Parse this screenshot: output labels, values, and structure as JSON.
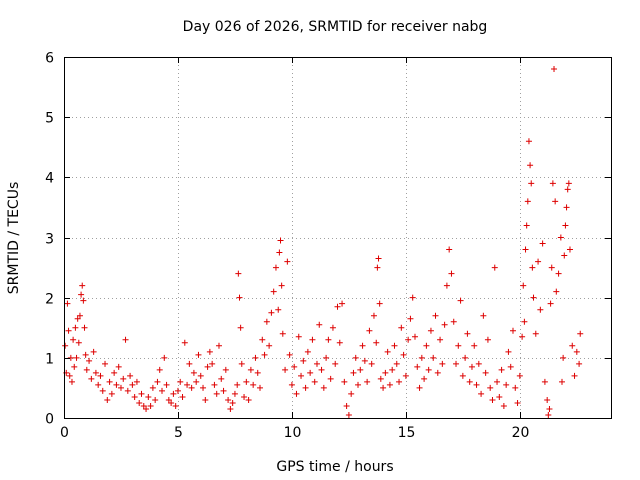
{
  "chart_data": {
    "type": "scatter",
    "title": "Day 026 of 2026, SRMTID for receiver nabg",
    "xlabel": "GPS time / hours",
    "ylabel": "SRMTID / TECUs",
    "xlim": [
      0,
      24
    ],
    "ylim": [
      0,
      6
    ],
    "xticks": [
      0,
      5,
      10,
      15,
      20
    ],
    "yticks": [
      0,
      1,
      2,
      3,
      4,
      5,
      6
    ],
    "grid": true,
    "marker": "+",
    "point_color": "#dd0000",
    "series": [
      {
        "name": "SRMTID",
        "points": [
          [
            0.05,
            1.2
          ],
          [
            0.1,
            0.75
          ],
          [
            0.15,
            1.9
          ],
          [
            0.2,
            1.45
          ],
          [
            0.25,
            0.7
          ],
          [
            0.3,
            1.0
          ],
          [
            0.35,
            0.6
          ],
          [
            0.4,
            1.3
          ],
          [
            0.45,
            0.85
          ],
          [
            0.5,
            1.5
          ],
          [
            0.55,
            1.0
          ],
          [
            0.6,
            1.65
          ],
          [
            0.65,
            1.25
          ],
          [
            0.7,
            1.7
          ],
          [
            0.75,
            2.05
          ],
          [
            0.8,
            2.2
          ],
          [
            0.85,
            1.95
          ],
          [
            0.9,
            1.5
          ],
          [
            0.95,
            1.05
          ],
          [
            1.0,
            0.8
          ],
          [
            1.1,
            0.95
          ],
          [
            1.2,
            0.65
          ],
          [
            1.3,
            1.1
          ],
          [
            1.4,
            0.75
          ],
          [
            1.5,
            0.55
          ],
          [
            1.6,
            0.7
          ],
          [
            1.7,
            0.45
          ],
          [
            1.8,
            0.9
          ],
          [
            1.9,
            0.3
          ],
          [
            2.0,
            0.6
          ],
          [
            2.1,
            0.4
          ],
          [
            2.2,
            0.75
          ],
          [
            2.3,
            0.55
          ],
          [
            2.4,
            0.85
          ],
          [
            2.5,
            0.5
          ],
          [
            2.6,
            0.65
          ],
          [
            2.7,
            1.3
          ],
          [
            2.8,
            0.45
          ],
          [
            2.9,
            0.7
          ],
          [
            3.0,
            0.55
          ],
          [
            3.1,
            0.35
          ],
          [
            3.2,
            0.6
          ],
          [
            3.3,
            0.25
          ],
          [
            3.4,
            0.4
          ],
          [
            3.5,
            0.2
          ],
          [
            3.6,
            0.15
          ],
          [
            3.7,
            0.35
          ],
          [
            3.8,
            0.2
          ],
          [
            3.9,
            0.5
          ],
          [
            4.0,
            0.3
          ],
          [
            4.1,
            0.6
          ],
          [
            4.2,
            0.8
          ],
          [
            4.3,
            0.45
          ],
          [
            4.4,
            1.0
          ],
          [
            4.5,
            0.55
          ],
          [
            4.6,
            0.3
          ],
          [
            4.7,
            0.25
          ],
          [
            4.8,
            0.4
          ],
          [
            4.9,
            0.2
          ],
          [
            5.0,
            0.45
          ],
          [
            5.1,
            0.6
          ],
          [
            5.2,
            0.35
          ],
          [
            5.3,
            1.25
          ],
          [
            5.4,
            0.55
          ],
          [
            5.5,
            0.9
          ],
          [
            5.6,
            0.5
          ],
          [
            5.7,
            0.75
          ],
          [
            5.8,
            0.6
          ],
          [
            5.9,
            1.05
          ],
          [
            6.0,
            0.7
          ],
          [
            6.1,
            0.5
          ],
          [
            6.2,
            0.3
          ],
          [
            6.3,
            0.85
          ],
          [
            6.4,
            1.1
          ],
          [
            6.5,
            0.9
          ],
          [
            6.6,
            0.55
          ],
          [
            6.7,
            0.4
          ],
          [
            6.8,
            1.2
          ],
          [
            6.9,
            0.65
          ],
          [
            7.0,
            0.45
          ],
          [
            7.1,
            0.8
          ],
          [
            7.2,
            0.3
          ],
          [
            7.3,
            0.15
          ],
          [
            7.4,
            0.25
          ],
          [
            7.5,
            0.4
          ],
          [
            7.6,
            0.55
          ],
          [
            7.65,
            2.4
          ],
          [
            7.7,
            2.0
          ],
          [
            7.75,
            1.5
          ],
          [
            7.8,
            0.9
          ],
          [
            7.9,
            0.35
          ],
          [
            8.0,
            0.6
          ],
          [
            8.1,
            0.3
          ],
          [
            8.2,
            0.8
          ],
          [
            8.3,
            0.55
          ],
          [
            8.4,
            1.0
          ],
          [
            8.5,
            0.75
          ],
          [
            8.6,
            0.5
          ],
          [
            8.7,
            1.3
          ],
          [
            8.8,
            1.05
          ],
          [
            8.9,
            1.6
          ],
          [
            9.0,
            1.2
          ],
          [
            9.1,
            1.75
          ],
          [
            9.2,
            2.1
          ],
          [
            9.3,
            2.5
          ],
          [
            9.4,
            1.8
          ],
          [
            9.45,
            2.75
          ],
          [
            9.5,
            2.95
          ],
          [
            9.55,
            2.2
          ],
          [
            9.6,
            1.4
          ],
          [
            9.7,
            0.8
          ],
          [
            9.8,
            2.6
          ],
          [
            9.9,
            1.05
          ],
          [
            10.0,
            0.55
          ],
          [
            10.1,
            0.85
          ],
          [
            10.2,
            0.4
          ],
          [
            10.3,
            1.35
          ],
          [
            10.4,
            0.7
          ],
          [
            10.5,
            0.95
          ],
          [
            10.6,
            0.5
          ],
          [
            10.7,
            1.1
          ],
          [
            10.8,
            0.75
          ],
          [
            10.9,
            1.3
          ],
          [
            11.0,
            0.6
          ],
          [
            11.1,
            0.9
          ],
          [
            11.2,
            1.55
          ],
          [
            11.3,
            0.8
          ],
          [
            11.4,
            0.5
          ],
          [
            11.5,
            1.0
          ],
          [
            11.6,
            1.3
          ],
          [
            11.7,
            0.65
          ],
          [
            11.8,
            1.5
          ],
          [
            11.9,
            0.9
          ],
          [
            12.0,
            1.85
          ],
          [
            12.1,
            1.25
          ],
          [
            12.2,
            1.9
          ],
          [
            12.3,
            0.6
          ],
          [
            12.4,
            0.2
          ],
          [
            12.5,
            0.05
          ],
          [
            12.6,
            0.4
          ],
          [
            12.7,
            0.75
          ],
          [
            12.8,
            1.0
          ],
          [
            12.9,
            0.55
          ],
          [
            13.0,
            0.8
          ],
          [
            13.1,
            1.2
          ],
          [
            13.2,
            0.95
          ],
          [
            13.3,
            0.6
          ],
          [
            13.4,
            1.45
          ],
          [
            13.5,
            0.9
          ],
          [
            13.6,
            1.7
          ],
          [
            13.7,
            1.25
          ],
          [
            13.75,
            2.5
          ],
          [
            13.8,
            2.65
          ],
          [
            13.85,
            1.9
          ],
          [
            13.9,
            0.65
          ],
          [
            14.0,
            0.5
          ],
          [
            14.1,
            0.75
          ],
          [
            14.2,
            1.1
          ],
          [
            14.3,
            0.55
          ],
          [
            14.4,
            0.8
          ],
          [
            14.5,
            1.2
          ],
          [
            14.6,
            0.9
          ],
          [
            14.7,
            0.6
          ],
          [
            14.8,
            1.5
          ],
          [
            14.9,
            1.05
          ],
          [
            15.0,
            0.7
          ],
          [
            15.1,
            1.3
          ],
          [
            15.2,
            1.65
          ],
          [
            15.3,
            2.0
          ],
          [
            15.4,
            1.35
          ],
          [
            15.5,
            0.85
          ],
          [
            15.6,
            0.5
          ],
          [
            15.7,
            1.0
          ],
          [
            15.8,
            0.65
          ],
          [
            15.9,
            1.2
          ],
          [
            16.0,
            0.8
          ],
          [
            16.1,
            1.45
          ],
          [
            16.2,
            1.0
          ],
          [
            16.3,
            1.7
          ],
          [
            16.4,
            0.75
          ],
          [
            16.5,
            1.3
          ],
          [
            16.6,
            0.9
          ],
          [
            16.7,
            1.55
          ],
          [
            16.8,
            2.2
          ],
          [
            16.9,
            2.8
          ],
          [
            17.0,
            2.4
          ],
          [
            17.1,
            1.6
          ],
          [
            17.2,
            0.9
          ],
          [
            17.3,
            1.2
          ],
          [
            17.4,
            1.95
          ],
          [
            17.5,
            0.7
          ],
          [
            17.6,
            1.0
          ],
          [
            17.7,
            1.4
          ],
          [
            17.8,
            0.6
          ],
          [
            17.9,
            0.85
          ],
          [
            18.0,
            1.2
          ],
          [
            18.1,
            0.55
          ],
          [
            18.2,
            0.9
          ],
          [
            18.3,
            0.4
          ],
          [
            18.4,
            1.7
          ],
          [
            18.5,
            0.75
          ],
          [
            18.6,
            1.3
          ],
          [
            18.7,
            0.5
          ],
          [
            18.8,
            0.3
          ],
          [
            18.9,
            2.5
          ],
          [
            19.0,
            0.6
          ],
          [
            19.1,
            0.35
          ],
          [
            19.2,
            0.8
          ],
          [
            19.3,
            0.2
          ],
          [
            19.4,
            0.55
          ],
          [
            19.5,
            1.1
          ],
          [
            19.6,
            0.85
          ],
          [
            19.7,
            1.45
          ],
          [
            19.8,
            0.5
          ],
          [
            19.9,
            0.25
          ],
          [
            20.0,
            0.7
          ],
          [
            20.1,
            1.35
          ],
          [
            20.15,
            2.2
          ],
          [
            20.2,
            1.6
          ],
          [
            20.25,
            2.8
          ],
          [
            20.3,
            3.2
          ],
          [
            20.35,
            3.6
          ],
          [
            20.4,
            4.6
          ],
          [
            20.45,
            4.2
          ],
          [
            20.5,
            3.9
          ],
          [
            20.55,
            2.5
          ],
          [
            20.6,
            2.0
          ],
          [
            20.7,
            1.4
          ],
          [
            20.8,
            2.6
          ],
          [
            20.9,
            1.8
          ],
          [
            21.0,
            2.9
          ],
          [
            21.1,
            0.6
          ],
          [
            21.2,
            0.3
          ],
          [
            21.25,
            0.05
          ],
          [
            21.3,
            0.15
          ],
          [
            21.35,
            1.9
          ],
          [
            21.4,
            2.5
          ],
          [
            21.45,
            3.9
          ],
          [
            21.5,
            5.8
          ],
          [
            21.55,
            3.6
          ],
          [
            21.6,
            2.1
          ],
          [
            21.7,
            2.4
          ],
          [
            21.8,
            3.0
          ],
          [
            21.85,
            0.6
          ],
          [
            21.9,
            1.0
          ],
          [
            21.95,
            2.7
          ],
          [
            22.0,
            3.2
          ],
          [
            22.05,
            3.5
          ],
          [
            22.1,
            3.8
          ],
          [
            22.15,
            3.9
          ],
          [
            22.2,
            2.8
          ],
          [
            22.3,
            1.2
          ],
          [
            22.4,
            0.7
          ],
          [
            22.5,
            1.1
          ],
          [
            22.6,
            0.9
          ],
          [
            22.65,
            1.4
          ]
        ]
      }
    ]
  }
}
